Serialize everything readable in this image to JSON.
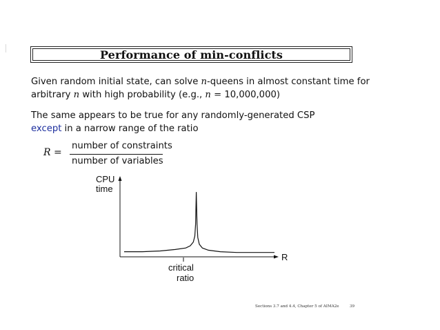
{
  "title": "Performance of min-conflicts",
  "para1": {
    "line1": {
      "before": "Given random initial state, can solve ",
      "var_n": "n",
      "after": "-queens in almost constant time for"
    },
    "line2": {
      "before": "arbitrary ",
      "var_n": "n",
      "middle": " with high probability (e.g., ",
      "var_n2": "n",
      "equals": " = ",
      "value": "10,000,000",
      "close": ")"
    }
  },
  "para2": {
    "line1": "The same appears to be true for any randomly-generated CSP",
    "line2_highlight": "except",
    "line2_rest": " in a narrow range of the ratio"
  },
  "formula": {
    "lhs": "R",
    "equals": "=",
    "numerator": "number of constraints",
    "denominator": "number of variables"
  },
  "chart_data": {
    "type": "line",
    "ylabel": "CPU\ntime",
    "xlabel": "R",
    "ylabel_line1": "CPU",
    "ylabel_line2": "time",
    "annotation": {
      "line1": "critical",
      "line2": "ratio"
    },
    "x_ticks": [],
    "y_ticks": [],
    "grid": false,
    "series": [
      {
        "values_description_free": true,
        "x": [
          0,
          0.12,
          0.24,
          0.34,
          0.41,
          0.44,
          0.46,
          0.47,
          0.475,
          0.48,
          0.485,
          0.49,
          0.5,
          0.52,
          0.56,
          0.64,
          0.75,
          0.87,
          1.0
        ],
        "y": [
          0.05,
          0.05,
          0.06,
          0.08,
          0.1,
          0.13,
          0.18,
          0.26,
          0.42,
          0.85,
          0.42,
          0.24,
          0.15,
          0.1,
          0.07,
          0.05,
          0.04,
          0.04,
          0.04
        ]
      }
    ],
    "xlim": [
      0,
      1
    ],
    "ylim": [
      0,
      1
    ]
  },
  "footer": {
    "source": "Sections 3.7 and 4.4, Chapter 5 of AIMA2e",
    "page": "39"
  },
  "colors": {
    "text": "#111111",
    "highlight": "#1d2f9e"
  }
}
